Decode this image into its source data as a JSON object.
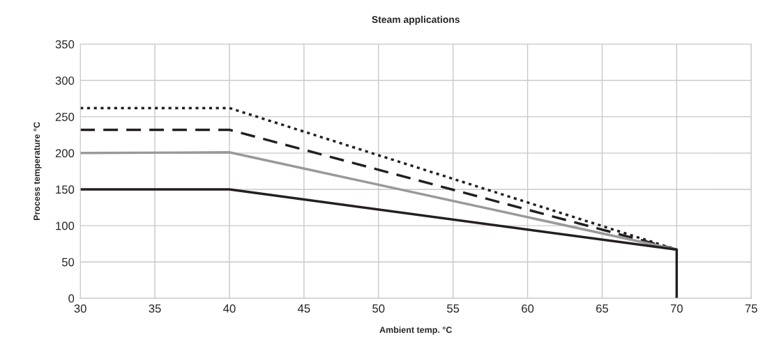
{
  "chart_data": {
    "type": "line",
    "title": "Steam applications",
    "xlabel": "Ambient temp. °C",
    "ylabel": "Process temperature °C",
    "series": [
      {
        "color": "#231f20",
        "line_style": "dotted",
        "x": [
          30,
          40,
          70
        ],
        "values": [
          262,
          262,
          67
        ]
      },
      {
        "color": "#231f20",
        "line_style": "dashed",
        "x": [
          30,
          40,
          70
        ],
        "values": [
          232,
          232,
          67
        ]
      },
      {
        "color": "#999999",
        "line_style": "solid",
        "x": [
          30,
          40,
          70
        ],
        "values": [
          200,
          201,
          67
        ]
      },
      {
        "color": "#231f20",
        "line_style": "solid",
        "x": [
          30,
          40,
          70,
          70
        ],
        "values": [
          150,
          150,
          67,
          0
        ]
      }
    ],
    "xlim": [
      30,
      75
    ],
    "xticks": [
      30,
      35,
      40,
      45,
      50,
      55,
      60,
      65,
      70,
      75
    ],
    "ylim": [
      0,
      350
    ],
    "yticks": [
      0,
      50,
      100,
      150,
      200,
      250,
      300,
      350
    ],
    "grid": true,
    "legend": false,
    "marker": "none"
  }
}
